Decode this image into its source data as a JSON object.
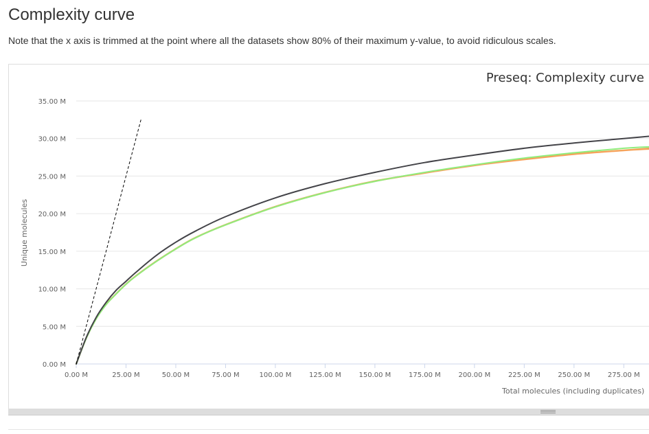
{
  "page": {
    "title": "Complexity curve",
    "note": "Note that the x axis is trimmed at the point where all the datasets show 80% of their maximum y-value, to avoid ridiculous scales."
  },
  "chart_data": {
    "type": "line",
    "title": "Preseq: Complexity curve",
    "xlabel": "Total molecules (including duplicates)",
    "ylabel": "Unique molecules",
    "xlim": [
      0,
      288
    ],
    "ylim": [
      0,
      35
    ],
    "x_unit": "M",
    "y_unit": "M",
    "x_ticks": [
      0,
      25,
      50,
      75,
      100,
      125,
      150,
      175,
      200,
      225,
      250,
      275
    ],
    "x_tick_labels": [
      "0.00 M",
      "25.00 M",
      "50.00 M",
      "75.00 M",
      "100.00 M",
      "125.00 M",
      "150.00 M",
      "175.00 M",
      "200.00 M",
      "225.00 M",
      "250.00 M",
      "275.00 M"
    ],
    "y_ticks": [
      0,
      5,
      10,
      15,
      20,
      25,
      30,
      35
    ],
    "y_tick_labels": [
      "0.00 M",
      "5.00 M",
      "10.00 M",
      "15.00 M",
      "20.00 M",
      "25.00 M",
      "30.00 M",
      "35.00 M"
    ],
    "grid": true,
    "legend": "none",
    "reference_line": {
      "style": "dashed",
      "color": "#000000",
      "x": [
        0,
        32.5
      ],
      "y": [
        0,
        32.5
      ]
    },
    "series": [
      {
        "color": "#434348",
        "x": [
          0,
          5,
          10,
          15,
          20,
          25,
          30,
          40,
          50,
          60,
          75,
          100,
          125,
          150,
          175,
          200,
          225,
          250,
          275,
          288
        ],
        "y": [
          0,
          3.5,
          6.2,
          8.2,
          9.8,
          11.0,
          12.2,
          14.4,
          16.2,
          17.7,
          19.6,
          22.1,
          24.0,
          25.5,
          26.8,
          27.8,
          28.7,
          29.4,
          30.0,
          30.3
        ]
      },
      {
        "color": "#90ed7d",
        "x": [
          0,
          5,
          10,
          15,
          20,
          25,
          30,
          40,
          50,
          60,
          75,
          100,
          125,
          150,
          175,
          200,
          225,
          250,
          275,
          288
        ],
        "y": [
          0,
          3.4,
          6.0,
          7.9,
          9.3,
          10.6,
          11.7,
          13.6,
          15.3,
          16.8,
          18.5,
          20.9,
          22.8,
          24.3,
          25.5,
          26.5,
          27.4,
          28.1,
          28.7,
          28.9
        ]
      },
      {
        "color": "#f7a35c",
        "x": [
          0,
          5,
          10,
          15,
          20,
          25,
          30,
          40,
          50,
          60,
          75,
          100,
          125,
          150,
          175,
          200,
          225,
          250,
          275,
          288
        ],
        "y": [
          0,
          3.4,
          6.0,
          7.9,
          9.3,
          10.6,
          11.7,
          13.6,
          15.3,
          16.8,
          18.5,
          20.9,
          22.8,
          24.3,
          25.4,
          26.4,
          27.2,
          27.9,
          28.4,
          28.6
        ]
      },
      {
        "color": "#e4a853",
        "x": [
          0,
          5,
          10,
          15,
          20,
          25,
          30,
          40,
          50,
          60,
          75,
          100,
          125,
          150,
          175,
          200,
          225,
          250,
          275,
          288
        ],
        "y": [
          0,
          3.45,
          6.05,
          7.95,
          9.35,
          10.65,
          11.75,
          13.65,
          15.35,
          16.85,
          18.55,
          20.95,
          22.85,
          24.35,
          25.45,
          26.45,
          27.25,
          27.95,
          28.45,
          28.7
        ]
      }
    ]
  }
}
